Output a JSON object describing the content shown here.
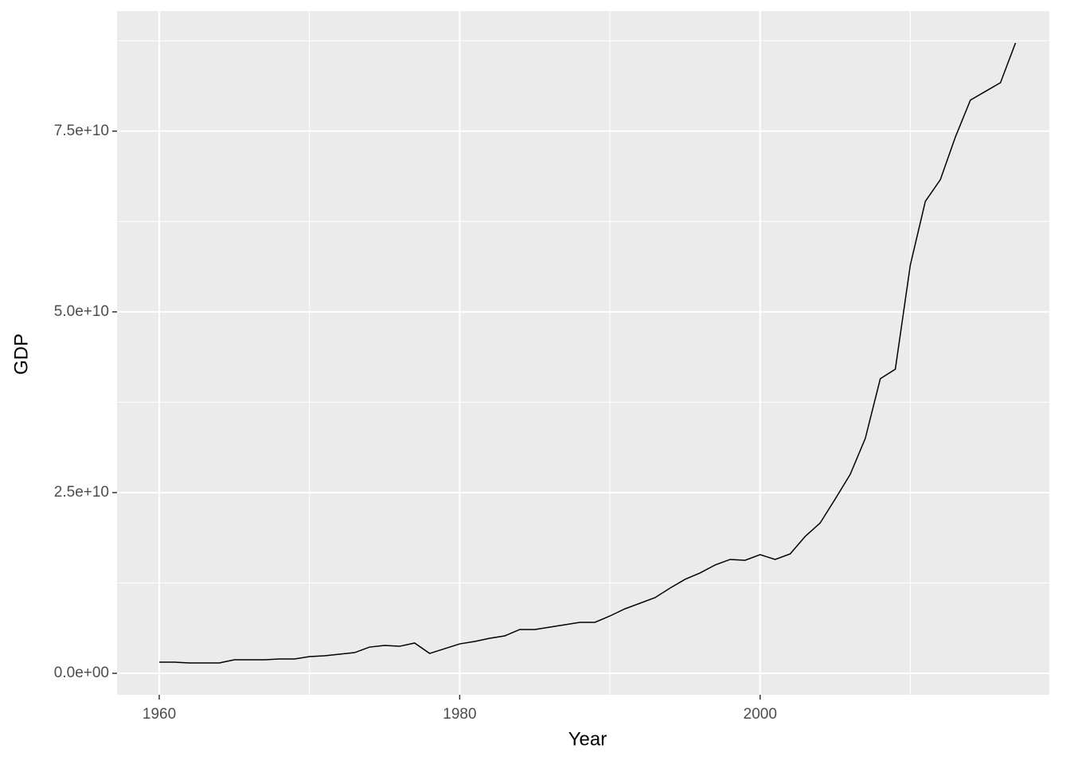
{
  "chart_data": {
    "type": "line",
    "x_label": "Year",
    "y_label": "GDP",
    "x": [
      1960,
      1961,
      1962,
      1963,
      1964,
      1965,
      1966,
      1967,
      1968,
      1969,
      1970,
      1971,
      1972,
      1973,
      1974,
      1975,
      1976,
      1977,
      1978,
      1979,
      1980,
      1981,
      1982,
      1983,
      1984,
      1985,
      1986,
      1987,
      1988,
      1989,
      1990,
      1991,
      1992,
      1993,
      1994,
      1995,
      1996,
      1997,
      1998,
      1999,
      2000,
      2001,
      2002,
      2003,
      2004,
      2005,
      2006,
      2007,
      2008,
      2009,
      2010,
      2011,
      2012,
      2013,
      2014,
      2015,
      2016,
      2017
    ],
    "y": [
      1540000000.0,
      1540000000.0,
      1430000000.0,
      1430000000.0,
      1430000000.0,
      1870000000.0,
      1870000000.0,
      1870000000.0,
      1980000000.0,
      1980000000.0,
      2310000000.0,
      2420000000.0,
      2640000000.0,
      2860000000.0,
      3630000000.0,
      3850000000.0,
      3740000000.0,
      4190000000.0,
      2750000000.0,
      3410000000.0,
      4070000000.0,
      4410000000.0,
      4850000000.0,
      5180000000.0,
      6060000000.0,
      6060000000.0,
      6390000000.0,
      6720000000.0,
      7050000000.0,
      7050000000.0,
      7930000000.0,
      8920000000.0,
      9690000000.0,
      10460000000.0,
      11780000000.0,
      13000000000.0,
      13880000000.0,
      14980000000.0,
      15750000000.0,
      15640000000.0,
      16410000000.0,
      15750000000.0,
      16520000000.0,
      18940000000.0,
      20810000000.0,
      24120000000.0,
      27530000000.0,
      32490000000.0,
      40750000000.0,
      42070000000.0,
      56500000000.0,
      65300000000.0,
      68300000000.0,
      74200000000.0,
      79300000000.0,
      80500000000.0,
      81700000000.0,
      87200000000.0
    ],
    "color": "#000000",
    "xlim": [
      1957.19,
      2019.25
    ],
    "xticks": [
      1960,
      1980,
      2000
    ],
    "ylim": [
      -2970000000.0,
      91600000000.0
    ],
    "yticks": [
      {
        "value": 0,
        "label": "0.0e+00"
      },
      {
        "value": 25000000000.0,
        "label": "2.5e+10"
      },
      {
        "value": 50000000000.0,
        "label": "5.0e+10"
      },
      {
        "value": 75000000000.0,
        "label": "7.5e+10"
      }
    ],
    "grid": true
  }
}
